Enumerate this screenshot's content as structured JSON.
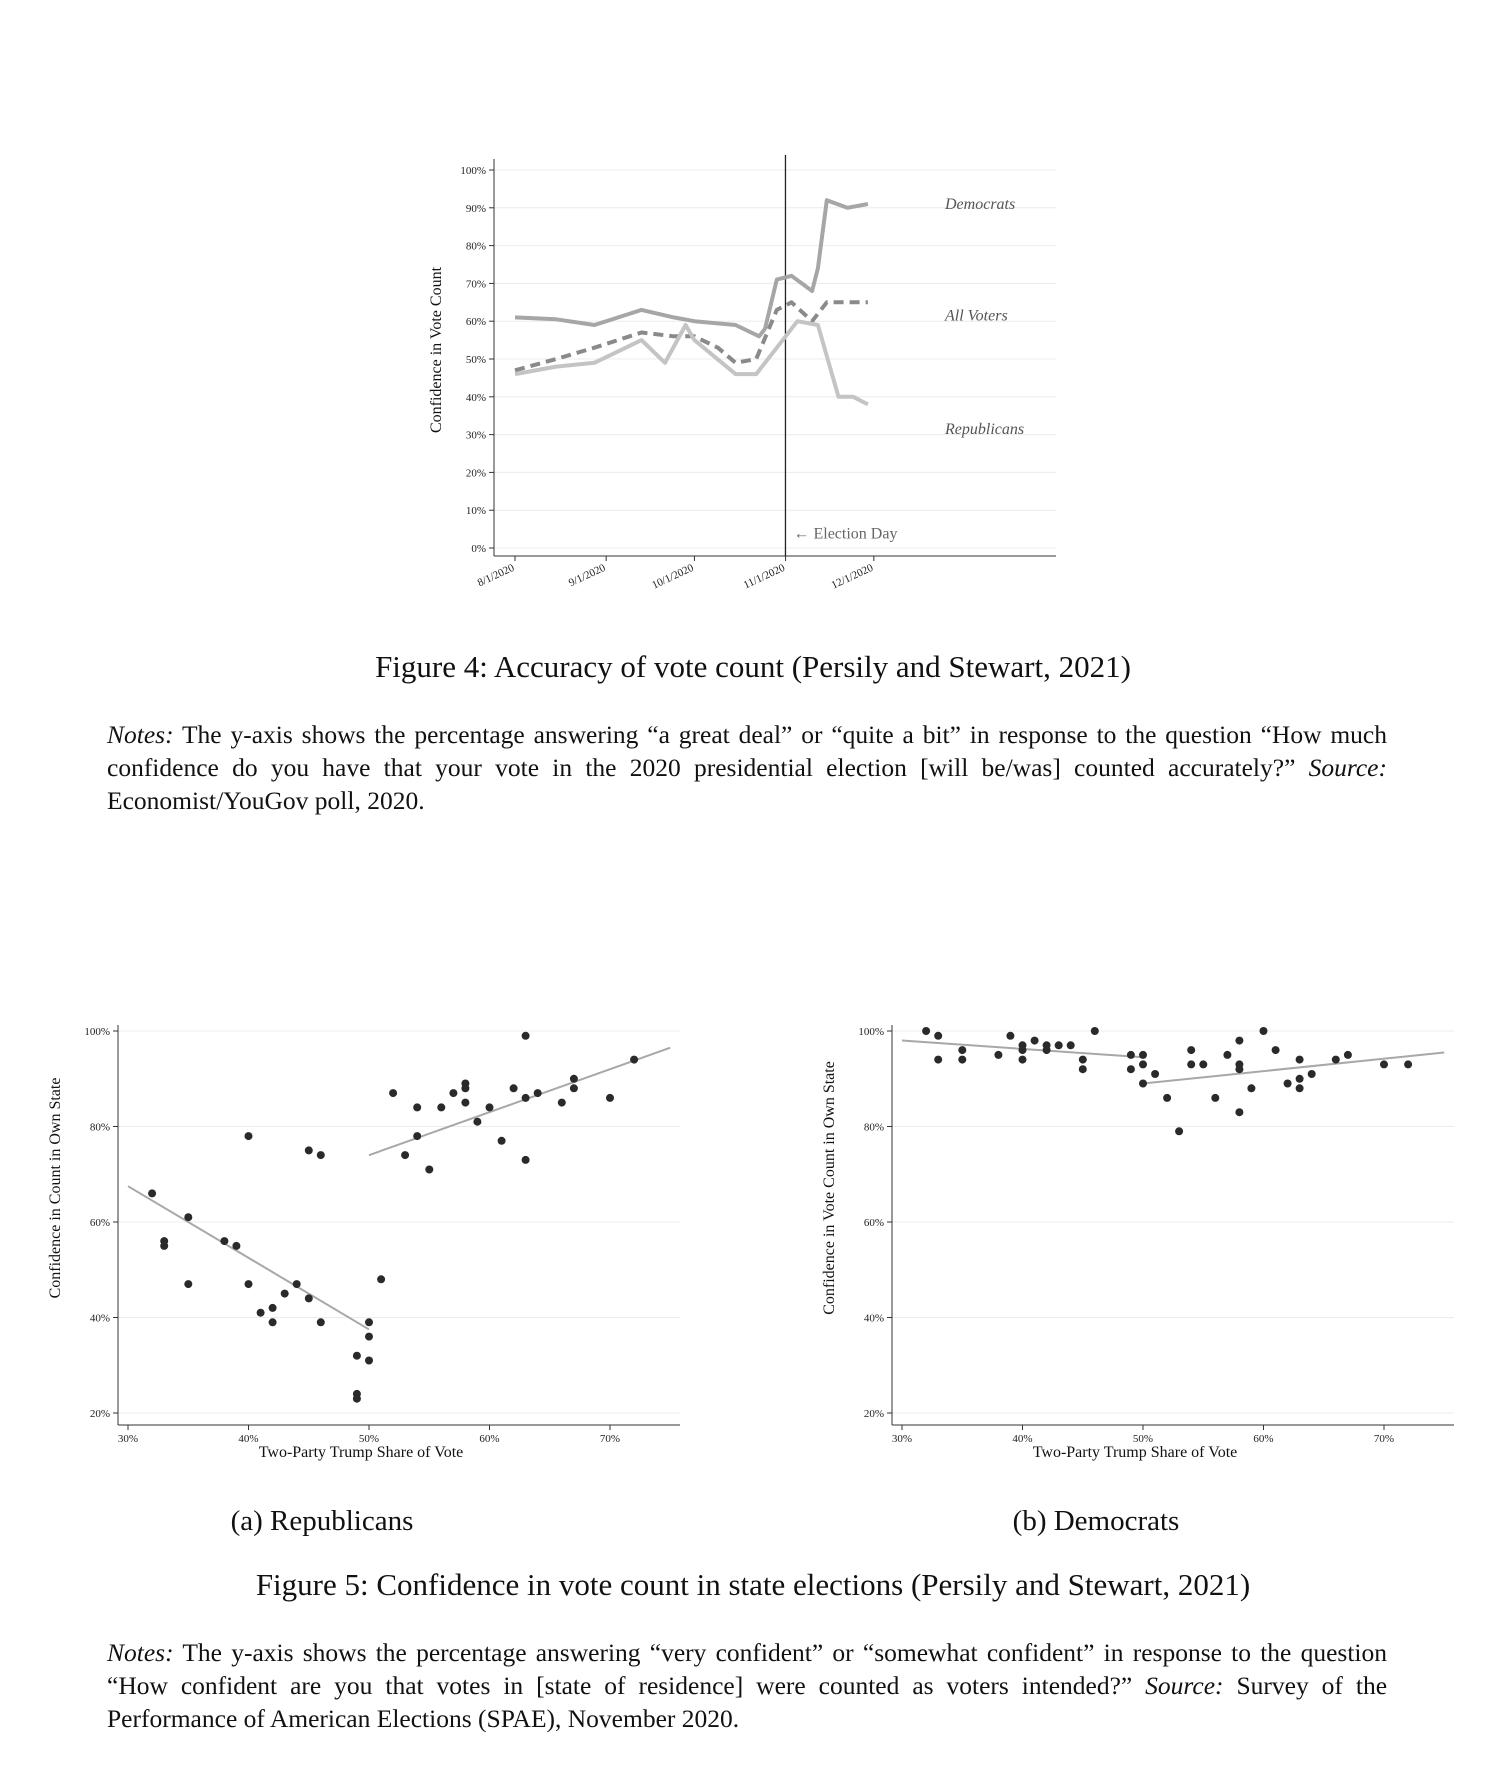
{
  "figure4": {
    "caption": "Figure 4: Accuracy of vote count (Persily and Stewart, 2021)",
    "notes": {
      "lead": "Notes:",
      "text": " The y-axis shows the percentage answering “a great deal” or “quite a bit” in response to the question “How much confidence do you have that your vote in the 2020 presidential election [will be/was] counted accurately?” ",
      "source_lead": "Source:",
      "source_text": " Economist/YouGov poll, 2020."
    }
  },
  "figure5": {
    "caption": "Figure 5: Confidence in vote count in state elections (Persily and Stewart, 2021)",
    "sub_a": "(a) Republicans",
    "sub_b": "(b) Democrats",
    "notes": {
      "lead": "Notes:",
      "text": " The y-axis shows the percentage answering “very confident” or “somewhat confident” in response to the question “How confident are you that votes in [state of residence] were counted as voters intended?” ",
      "source_lead": "Source:",
      "source_text": " Survey of the Performance of American Elections (SPAE), November 2020."
    }
  },
  "chart_data": [
    {
      "id": "fig4",
      "type": "line",
      "ylabel": "Confidence in Vote Count",
      "xlabel": "",
      "ylim": [
        0,
        100
      ],
      "yticks": [
        "0%",
        "10%",
        "20%",
        "30%",
        "40%",
        "50%",
        "60%",
        "70%",
        "80%",
        "90%",
        "100%"
      ],
      "xticks": [
        "8/1/2020",
        "9/1/2020",
        "10/1/2020",
        "11/1/2020",
        "12/1/2020"
      ],
      "x_date_range": [
        "2020-08-01",
        "2021-01-01"
      ],
      "grid": true,
      "annotation": {
        "label": "← Election Day",
        "date": "2020-11-03"
      },
      "series": [
        {
          "name": "Democrats",
          "color": "#a6a6a6",
          "dash": false,
          "points": [
            [
              "2020-08-01",
              61
            ],
            [
              "2020-08-15",
              60.5
            ],
            [
              "2020-08-28",
              59
            ],
            [
              "2020-09-13",
              63
            ],
            [
              "2020-09-24",
              61
            ],
            [
              "2020-10-01",
              60
            ],
            [
              "2020-10-15",
              59
            ],
            [
              "2020-10-23",
              56
            ],
            [
              "2020-10-25",
              58
            ],
            [
              "2020-10-29",
              71
            ],
            [
              "2020-11-03",
              72
            ],
            [
              "2020-11-10",
              68
            ],
            [
              "2020-11-12",
              74
            ],
            [
              "2020-11-15",
              92
            ],
            [
              "2020-11-22",
              90
            ],
            [
              "2020-11-29",
              91
            ]
          ]
        },
        {
          "name": "All Voters",
          "color": "#8a8a8a",
          "dash": true,
          "points": [
            [
              "2020-08-01",
              47
            ],
            [
              "2020-08-15",
              50
            ],
            [
              "2020-08-28",
              53
            ],
            [
              "2020-09-13",
              57
            ],
            [
              "2020-09-24",
              56
            ],
            [
              "2020-10-01",
              56
            ],
            [
              "2020-10-09",
              53
            ],
            [
              "2020-10-15",
              49
            ],
            [
              "2020-10-22",
              50
            ],
            [
              "2020-10-29",
              63
            ],
            [
              "2020-11-03",
              65
            ],
            [
              "2020-11-10",
              60
            ],
            [
              "2020-11-15",
              65
            ],
            [
              "2020-11-29",
              65
            ]
          ]
        },
        {
          "name": "Republicans",
          "color": "#c4c4c4",
          "dash": false,
          "points": [
            [
              "2020-08-01",
              46
            ],
            [
              "2020-08-15",
              48
            ],
            [
              "2020-08-28",
              49
            ],
            [
              "2020-09-13",
              55
            ],
            [
              "2020-09-21",
              49
            ],
            [
              "2020-09-28",
              59
            ],
            [
              "2020-10-01",
              55
            ],
            [
              "2020-10-15",
              46
            ],
            [
              "2020-10-22",
              46
            ],
            [
              "2020-10-29",
              53
            ],
            [
              "2020-11-05",
              60
            ],
            [
              "2020-11-12",
              59
            ],
            [
              "2020-11-19",
              40
            ],
            [
              "2020-11-24",
              40
            ],
            [
              "2020-11-29",
              38
            ]
          ]
        }
      ]
    },
    {
      "id": "fig5a",
      "type": "scatter",
      "xlabel": "Two-Party Trump Share of Vote",
      "ylabel": "Confidence in Count in Own State",
      "xlim": [
        29,
        75
      ],
      "ylim": [
        20,
        100
      ],
      "xticks": [
        "30%",
        "40%",
        "50%",
        "60%",
        "70%"
      ],
      "yticks": [
        "20%",
        "40%",
        "60%",
        "80%",
        "100%"
      ],
      "grid": true,
      "points": [
        [
          32,
          66
        ],
        [
          33,
          56
        ],
        [
          33,
          55
        ],
        [
          35,
          61
        ],
        [
          35,
          47
        ],
        [
          38,
          56
        ],
        [
          39,
          55
        ],
        [
          40,
          78
        ],
        [
          40,
          47
        ],
        [
          41,
          41
        ],
        [
          42,
          42
        ],
        [
          42,
          39
        ],
        [
          43,
          45
        ],
        [
          44,
          47
        ],
        [
          45,
          44
        ],
        [
          45,
          75
        ],
        [
          46,
          74
        ],
        [
          46,
          39
        ],
        [
          49,
          32
        ],
        [
          49,
          24
        ],
        [
          49,
          23
        ],
        [
          50,
          39
        ],
        [
          50,
          36
        ],
        [
          50,
          31
        ],
        [
          51,
          48
        ],
        [
          52,
          87
        ],
        [
          53,
          74
        ],
        [
          54,
          84
        ],
        [
          54,
          78
        ],
        [
          55,
          71
        ],
        [
          56,
          84
        ],
        [
          57,
          87
        ],
        [
          58,
          89
        ],
        [
          58,
          88
        ],
        [
          58,
          85
        ],
        [
          59,
          81
        ],
        [
          60,
          84
        ],
        [
          61,
          77
        ],
        [
          62,
          88
        ],
        [
          63,
          99
        ],
        [
          63,
          86
        ],
        [
          63,
          73
        ],
        [
          64,
          87
        ],
        [
          66,
          85
        ],
        [
          67,
          90
        ],
        [
          67,
          88
        ],
        [
          70,
          86
        ],
        [
          72,
          94
        ]
      ],
      "fits": [
        {
          "from": [
            30,
            67.5
          ],
          "to": [
            50,
            37.5
          ]
        },
        {
          "from": [
            50,
            74
          ],
          "to": [
            75,
            96.5
          ]
        }
      ]
    },
    {
      "id": "fig5b",
      "type": "scatter",
      "xlabel": "Two-Party Trump Share of Vote",
      "ylabel": "Confidence in Vote Count in Own State",
      "xlim": [
        29,
        75
      ],
      "ylim": [
        20,
        100
      ],
      "xticks": [
        "30%",
        "40%",
        "50%",
        "60%",
        "70%"
      ],
      "yticks": [
        "20%",
        "40%",
        "60%",
        "80%",
        "100%"
      ],
      "grid": true,
      "points": [
        [
          32,
          100
        ],
        [
          33,
          99
        ],
        [
          33,
          94
        ],
        [
          35,
          96
        ],
        [
          35,
          94
        ],
        [
          38,
          95
        ],
        [
          39,
          99
        ],
        [
          40,
          97
        ],
        [
          40,
          96
        ],
        [
          40,
          94
        ],
        [
          41,
          98
        ],
        [
          42,
          97
        ],
        [
          42,
          96
        ],
        [
          43,
          97
        ],
        [
          44,
          97
        ],
        [
          45,
          94
        ],
        [
          45,
          92
        ],
        [
          46,
          100
        ],
        [
          49,
          95
        ],
        [
          49,
          92
        ],
        [
          50,
          95
        ],
        [
          50,
          93
        ],
        [
          50,
          89
        ],
        [
          51,
          91
        ],
        [
          52,
          86
        ],
        [
          53,
          79
        ],
        [
          54,
          96
        ],
        [
          54,
          93
        ],
        [
          55,
          93
        ],
        [
          56,
          86
        ],
        [
          57,
          95
        ],
        [
          58,
          98
        ],
        [
          58,
          93
        ],
        [
          58,
          92
        ],
        [
          58,
          83
        ],
        [
          59,
          88
        ],
        [
          60,
          100
        ],
        [
          61,
          96
        ],
        [
          62,
          89
        ],
        [
          63,
          94
        ],
        [
          63,
          90
        ],
        [
          63,
          88
        ],
        [
          64,
          91
        ],
        [
          66,
          94
        ],
        [
          67,
          95
        ],
        [
          70,
          93
        ],
        [
          72,
          93
        ]
      ],
      "fits": [
        {
          "from": [
            30,
            98
          ],
          "to": [
            50,
            94.5
          ]
        },
        {
          "from": [
            50,
            89
          ],
          "to": [
            75,
            95.5
          ]
        }
      ]
    }
  ]
}
